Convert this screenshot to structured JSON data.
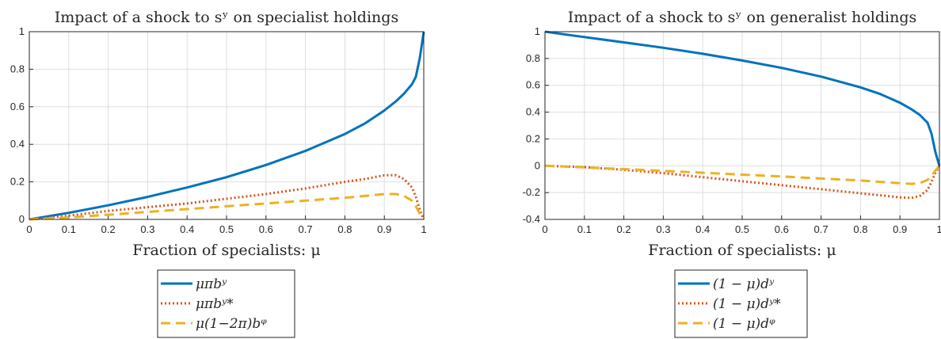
{
  "chart_data": [
    {
      "type": "line",
      "title": "Impact of a shock to sʸ on specialist holdings",
      "xlabel": "Fraction of specialists: μ",
      "ylabel": "",
      "xlim": [
        0,
        1
      ],
      "ylim": [
        0,
        1
      ],
      "xticks": [
        "0",
        "0.1",
        "0.2",
        "0.3",
        "0.4",
        "0.5",
        "0.6",
        "0.7",
        "0.8",
        "0.9",
        "1"
      ],
      "yticks": [
        "0",
        "0.2",
        "0.4",
        "0.6",
        "0.8",
        "1"
      ],
      "grid": true,
      "legend_placement": "below",
      "series": [
        {
          "name": "μπbʸ",
          "color": "#0072BD",
          "style": "solid",
          "x": [
            0,
            0.1,
            0.2,
            0.3,
            0.4,
            0.5,
            0.6,
            0.7,
            0.8,
            0.85,
            0.9,
            0.93,
            0.95,
            0.97,
            0.98,
            0.99,
            1.0
          ],
          "y": [
            0,
            0.035,
            0.075,
            0.12,
            0.17,
            0.225,
            0.29,
            0.365,
            0.455,
            0.51,
            0.58,
            0.63,
            0.67,
            0.72,
            0.76,
            0.86,
            1.0
          ]
        },
        {
          "name": "μπbʸ*",
          "color": "#D95319",
          "style": "dotted",
          "x": [
            0,
            0.1,
            0.2,
            0.3,
            0.4,
            0.5,
            0.6,
            0.7,
            0.8,
            0.85,
            0.9,
            0.93,
            0.95,
            0.97,
            0.98,
            0.99,
            1.0
          ],
          "y": [
            0,
            0.02,
            0.045,
            0.065,
            0.085,
            0.11,
            0.135,
            0.165,
            0.2,
            0.215,
            0.235,
            0.235,
            0.215,
            0.17,
            0.12,
            0.05,
            0
          ]
        },
        {
          "name": "μ(1−2π)bᵠ",
          "color": "#EDB120",
          "style": "dashed",
          "x": [
            0,
            0.1,
            0.2,
            0.3,
            0.4,
            0.5,
            0.6,
            0.7,
            0.8,
            0.85,
            0.9,
            0.93,
            0.95,
            0.97,
            0.98,
            0.99,
            1.0
          ],
          "y": [
            0,
            0.01,
            0.025,
            0.04,
            0.055,
            0.07,
            0.085,
            0.1,
            0.115,
            0.125,
            0.135,
            0.135,
            0.125,
            0.1,
            0.07,
            0.03,
            0
          ]
        }
      ]
    },
    {
      "type": "line",
      "title": "Impact of a shock to sʸ on generalist holdings",
      "xlabel": "Fraction of specialists: μ",
      "ylabel": "",
      "xlim": [
        0,
        1
      ],
      "ylim": [
        -0.4,
        1
      ],
      "xticks": [
        "0",
        "0.1",
        "0.2",
        "0.3",
        "0.4",
        "0.5",
        "0.6",
        "0.7",
        "0.8",
        "0.9",
        "1"
      ],
      "yticks": [
        "-0.4",
        "-0.2",
        "0",
        "0.2",
        "0.4",
        "0.6",
        "0.8",
        "1"
      ],
      "grid": true,
      "legend_placement": "below",
      "series": [
        {
          "name": "(1 − μ)dʸ",
          "color": "#0072BD",
          "style": "solid",
          "x": [
            0,
            0.1,
            0.2,
            0.3,
            0.4,
            0.5,
            0.6,
            0.7,
            0.8,
            0.85,
            0.9,
            0.93,
            0.95,
            0.97,
            0.98,
            0.99,
            1.0
          ],
          "y": [
            1.0,
            0.96,
            0.92,
            0.88,
            0.835,
            0.785,
            0.73,
            0.665,
            0.585,
            0.535,
            0.47,
            0.42,
            0.38,
            0.32,
            0.24,
            0.1,
            0
          ]
        },
        {
          "name": "(1 − μ)dʸ*",
          "color": "#D95319",
          "style": "dotted",
          "x": [
            0,
            0.1,
            0.2,
            0.3,
            0.4,
            0.5,
            0.6,
            0.7,
            0.8,
            0.85,
            0.9,
            0.93,
            0.95,
            0.97,
            0.98,
            0.99,
            1.0
          ],
          "y": [
            0,
            -0.01,
            -0.03,
            -0.055,
            -0.085,
            -0.115,
            -0.145,
            -0.175,
            -0.205,
            -0.22,
            -0.235,
            -0.24,
            -0.225,
            -0.18,
            -0.12,
            -0.05,
            0
          ]
        },
        {
          "name": "(1 − μ)dᵠ",
          "color": "#EDB120",
          "style": "dashed",
          "x": [
            0,
            0.1,
            0.2,
            0.3,
            0.4,
            0.5,
            0.6,
            0.7,
            0.8,
            0.85,
            0.9,
            0.93,
            0.95,
            0.97,
            0.98,
            0.99,
            1.0
          ],
          "y": [
            0,
            -0.012,
            -0.025,
            -0.038,
            -0.052,
            -0.066,
            -0.08,
            -0.095,
            -0.11,
            -0.12,
            -0.13,
            -0.135,
            -0.13,
            -0.105,
            -0.075,
            -0.035,
            0
          ]
        }
      ]
    }
  ]
}
